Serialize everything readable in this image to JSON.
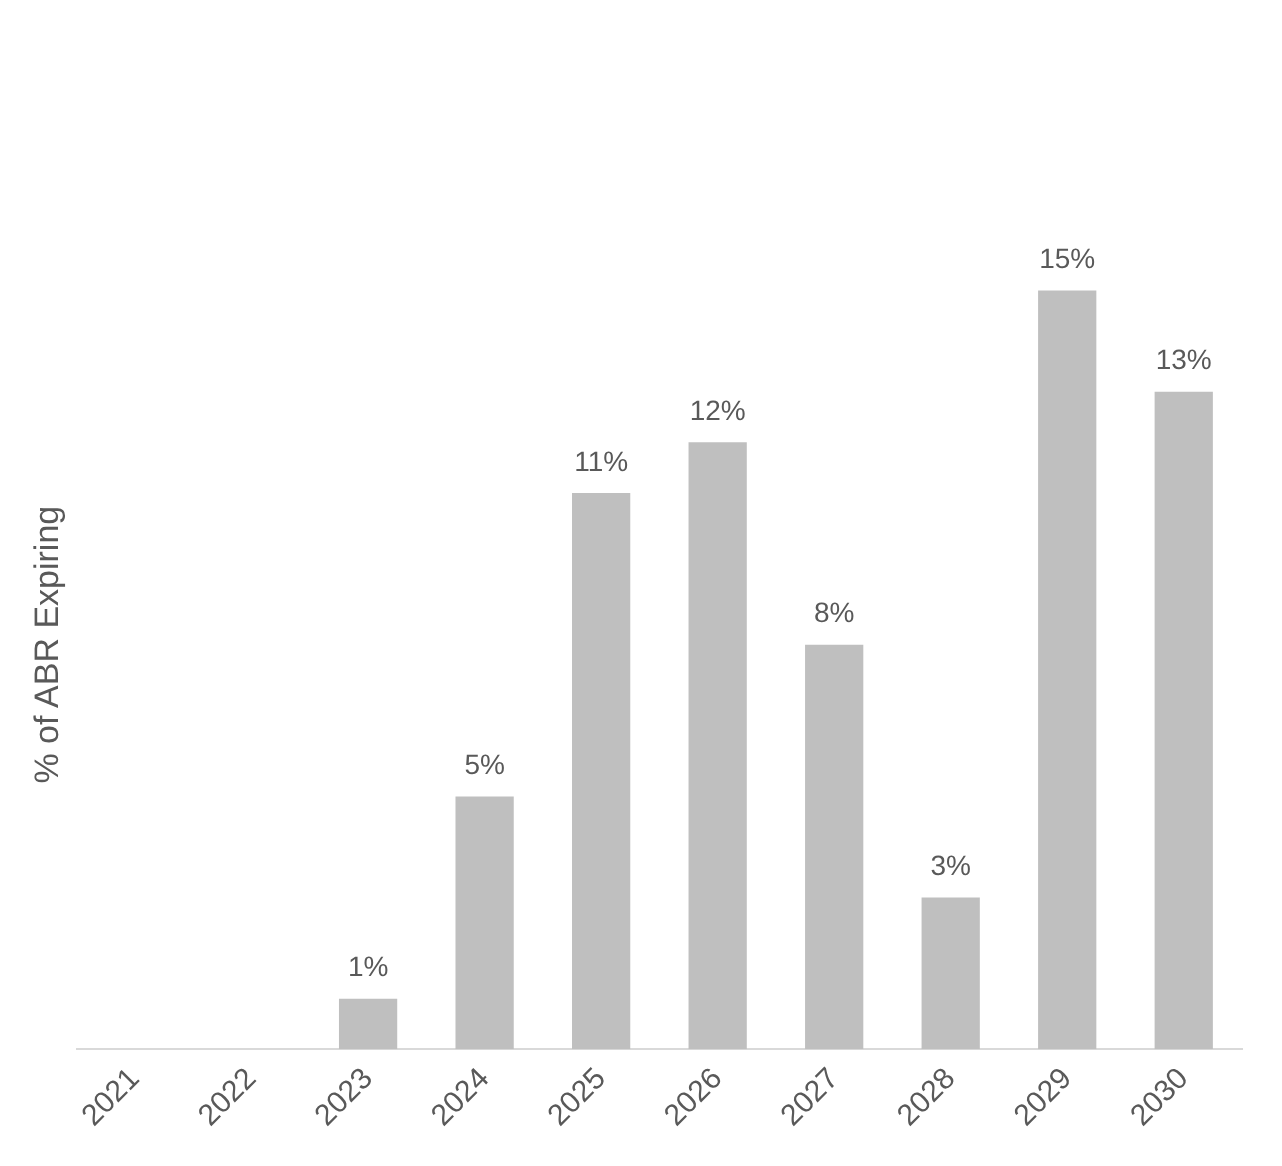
{
  "chart_data": {
    "type": "bar",
    "ylabel": "% of ABR Expiring",
    "categories": [
      "2021",
      "2022",
      "2023",
      "2024",
      "2025",
      "2026",
      "2027",
      "2028",
      "2029",
      "2030"
    ],
    "values": [
      0,
      0,
      1,
      5,
      11,
      12,
      8,
      3,
      15,
      13
    ],
    "value_labels": [
      null,
      null,
      "1%",
      "5%",
      "11%",
      "12%",
      "8%",
      "3%",
      "15%",
      "13%"
    ],
    "color": "#bfbfbf",
    "grid": false,
    "legend": false
  }
}
